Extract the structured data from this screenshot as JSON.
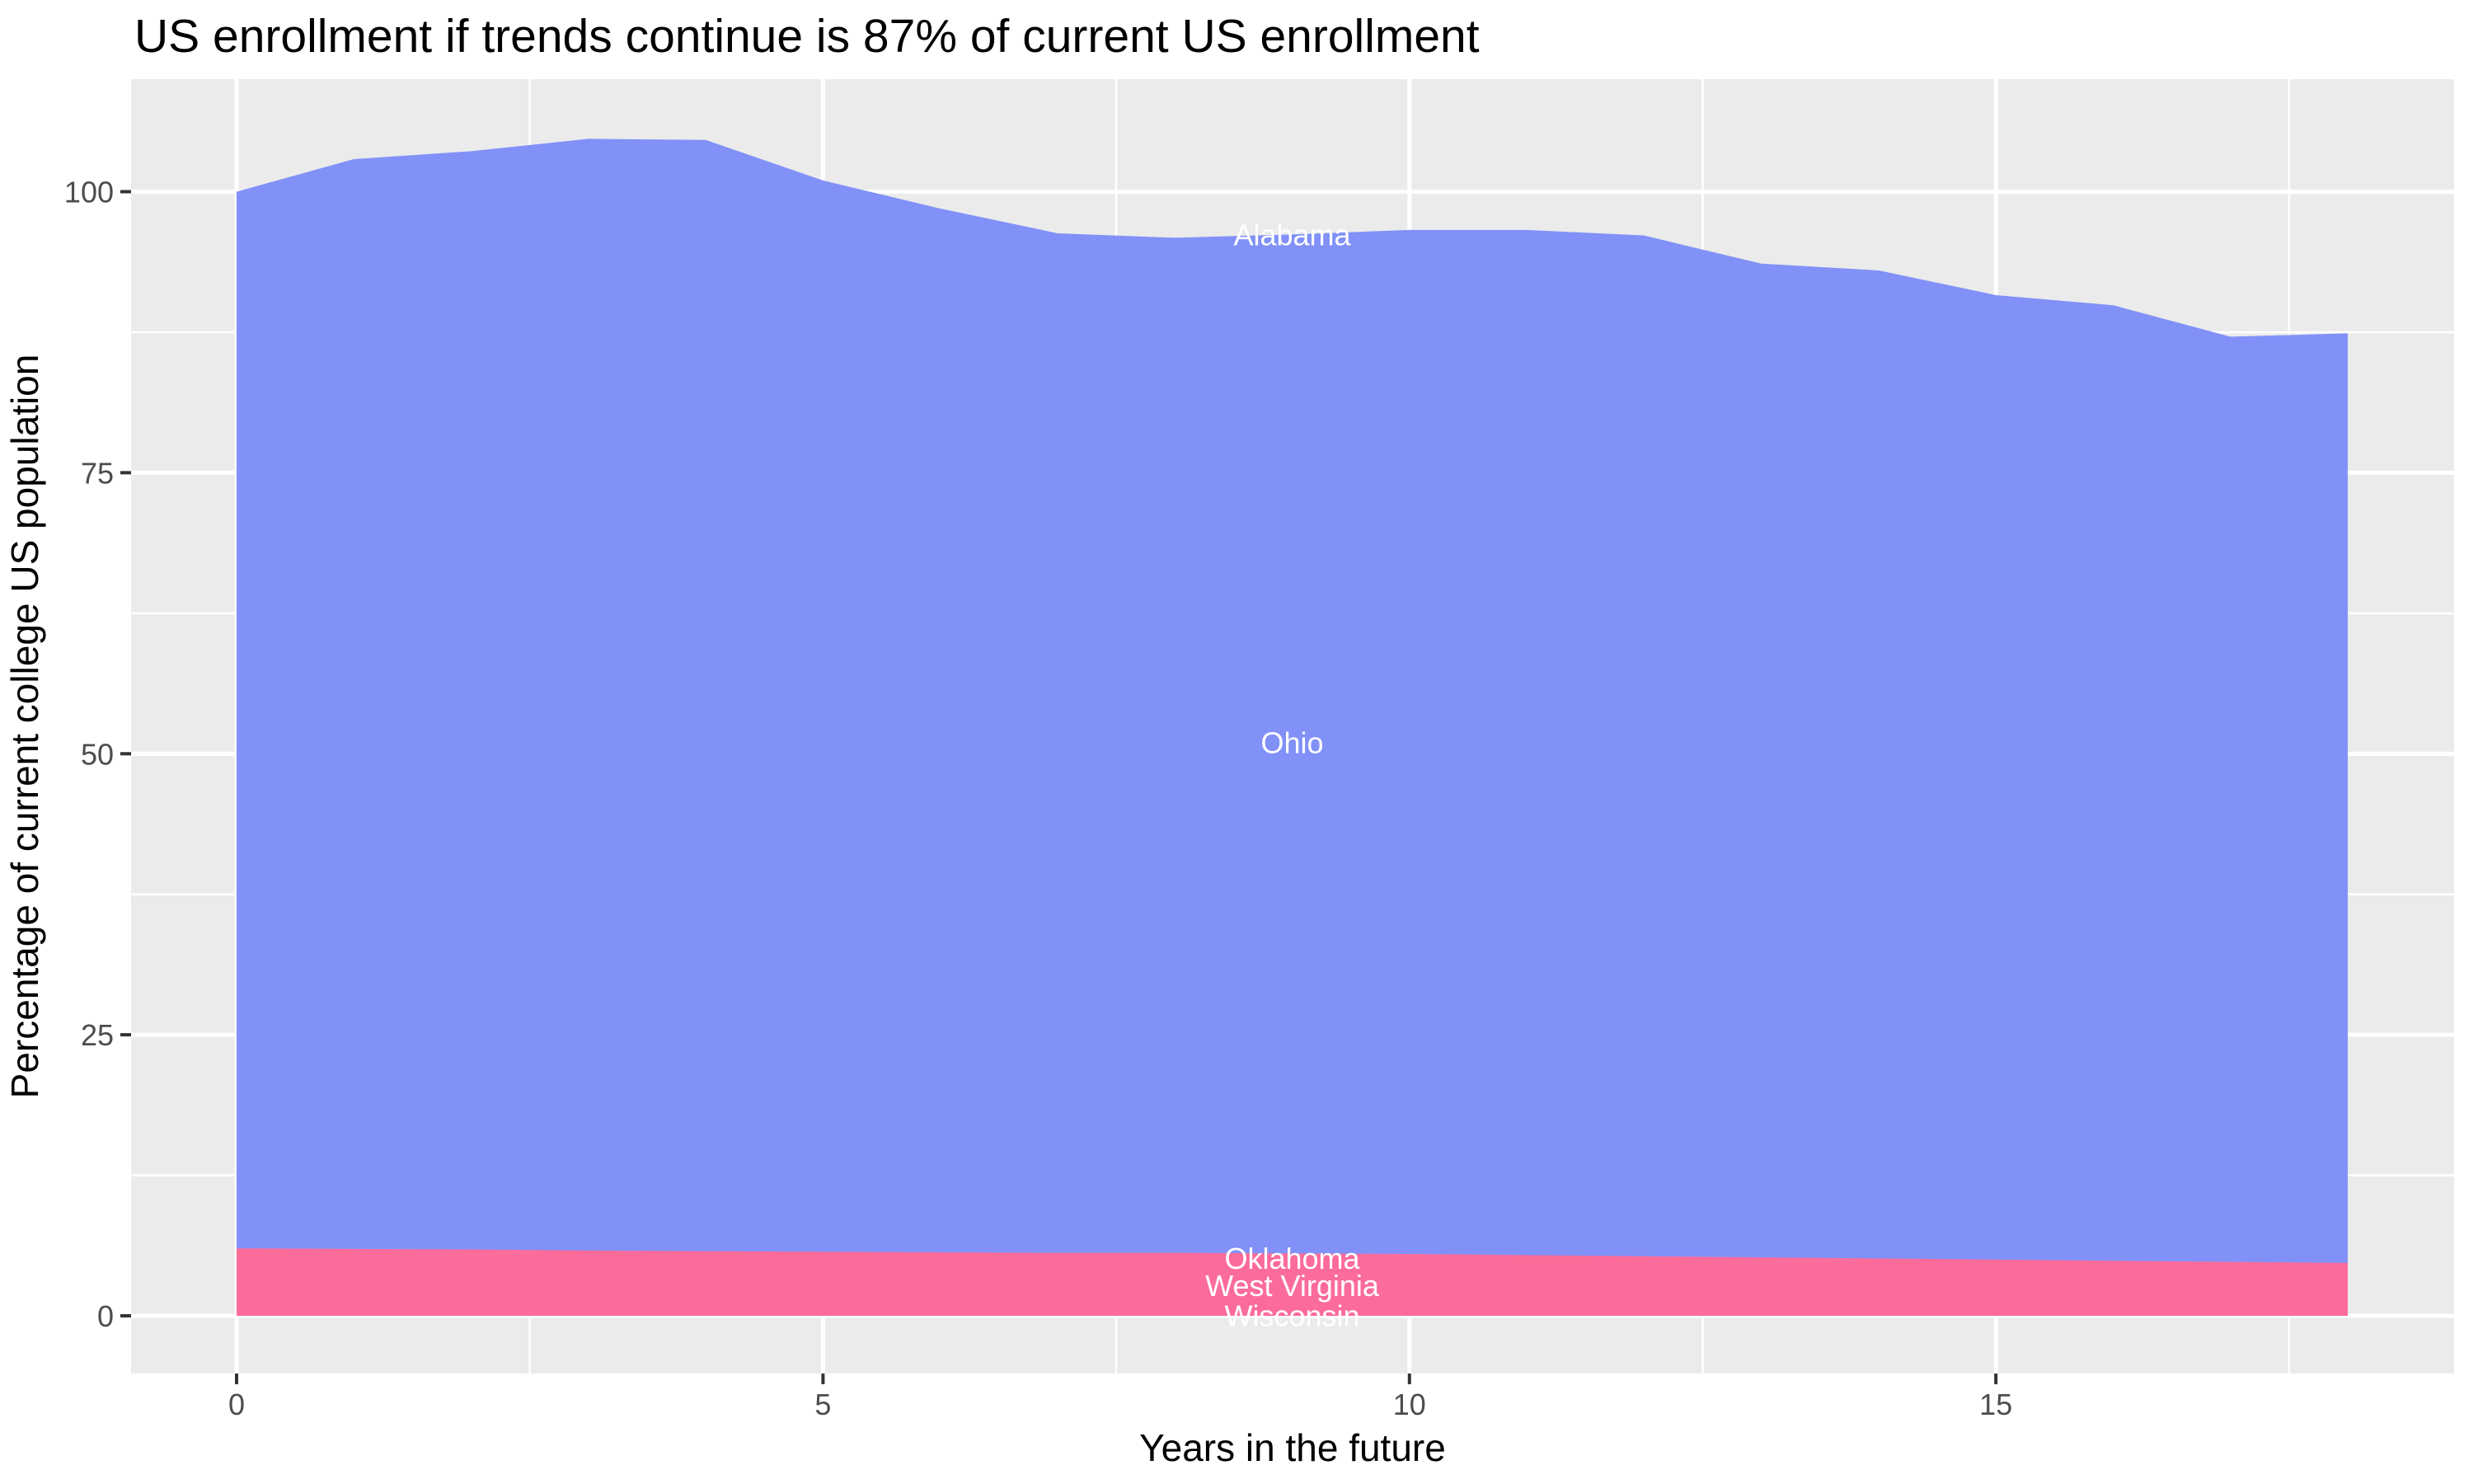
{
  "title": "US enrollment if trends continue is 87% of current US enrollment",
  "axes": {
    "x_label": "Years in the future",
    "y_label": "Percentage of current college US population",
    "x_tick_labels": [
      "0",
      "5",
      "10",
      "15"
    ],
    "y_tick_labels": [
      "0",
      "25",
      "50",
      "75",
      "100"
    ]
  },
  "colors": {
    "panel_background": "#EBEBEB",
    "gridline": "#FFFFFF",
    "tick_text": "#4D4D4D",
    "tick_mark": "#333333",
    "title_text": "#000000",
    "blue_area": "#8191F8",
    "pink_area": "#FC6C9B",
    "area_label_text": "#FFFFFF"
  },
  "chart_data": {
    "type": "area",
    "stacked": true,
    "title": "US enrollment if trends continue is 87% of current US enrollment",
    "xlabel": "Years in the future",
    "ylabel": "Percentage of current college US population",
    "grid": true,
    "legend": "none",
    "x": [
      0,
      1,
      2,
      3,
      4,
      5,
      6,
      7,
      8,
      9,
      10,
      11,
      12,
      13,
      14,
      15,
      16,
      17,
      18
    ],
    "xlim": [
      -0.9,
      18.9
    ],
    "ylim": [
      -5.2,
      109.9
    ],
    "x_major_ticks": [
      0,
      5,
      10,
      15
    ],
    "x_minor_ticks": [
      2.5,
      7.5,
      12.5,
      17.5
    ],
    "y_major_ticks": [
      0,
      25,
      50,
      75,
      100
    ],
    "y_minor_ticks": [
      12.5,
      37.5,
      62.5,
      87.5
    ],
    "series_note": "values are cumulative stack tops (percent of current college US population); bands share fill colors so only two boundaries are visible",
    "series": [
      {
        "name": "Oklahoma + West Virginia + Wisconsin",
        "color_key": "pink_area",
        "values": [
          6.0,
          5.95,
          5.9,
          5.8,
          5.75,
          5.7,
          5.65,
          5.6,
          5.6,
          5.55,
          5.5,
          5.4,
          5.3,
          5.2,
          5.1,
          5.0,
          4.9,
          4.8,
          4.7
        ]
      },
      {
        "name": "Alabama + Ohio",
        "color_key": "blue_area",
        "values": [
          100.0,
          102.9,
          103.6,
          104.7,
          104.6,
          101.0,
          98.5,
          96.3,
          95.9,
          96.2,
          96.6,
          96.6,
          96.1,
          93.6,
          93.0,
          90.8,
          89.9,
          87.1,
          87.4
        ]
      }
    ],
    "area_labels": [
      {
        "text": "Alabama",
        "x": 9,
        "y": 96.2
      },
      {
        "text": "Ohio",
        "x": 9,
        "y": 51.0
      },
      {
        "text": "Oklahoma",
        "x": 9,
        "y": 5.15
      },
      {
        "text": "West Virginia",
        "x": 9,
        "y": 2.7
      },
      {
        "text": "Wisconsin",
        "x": 9,
        "y": 0.05
      }
    ]
  }
}
